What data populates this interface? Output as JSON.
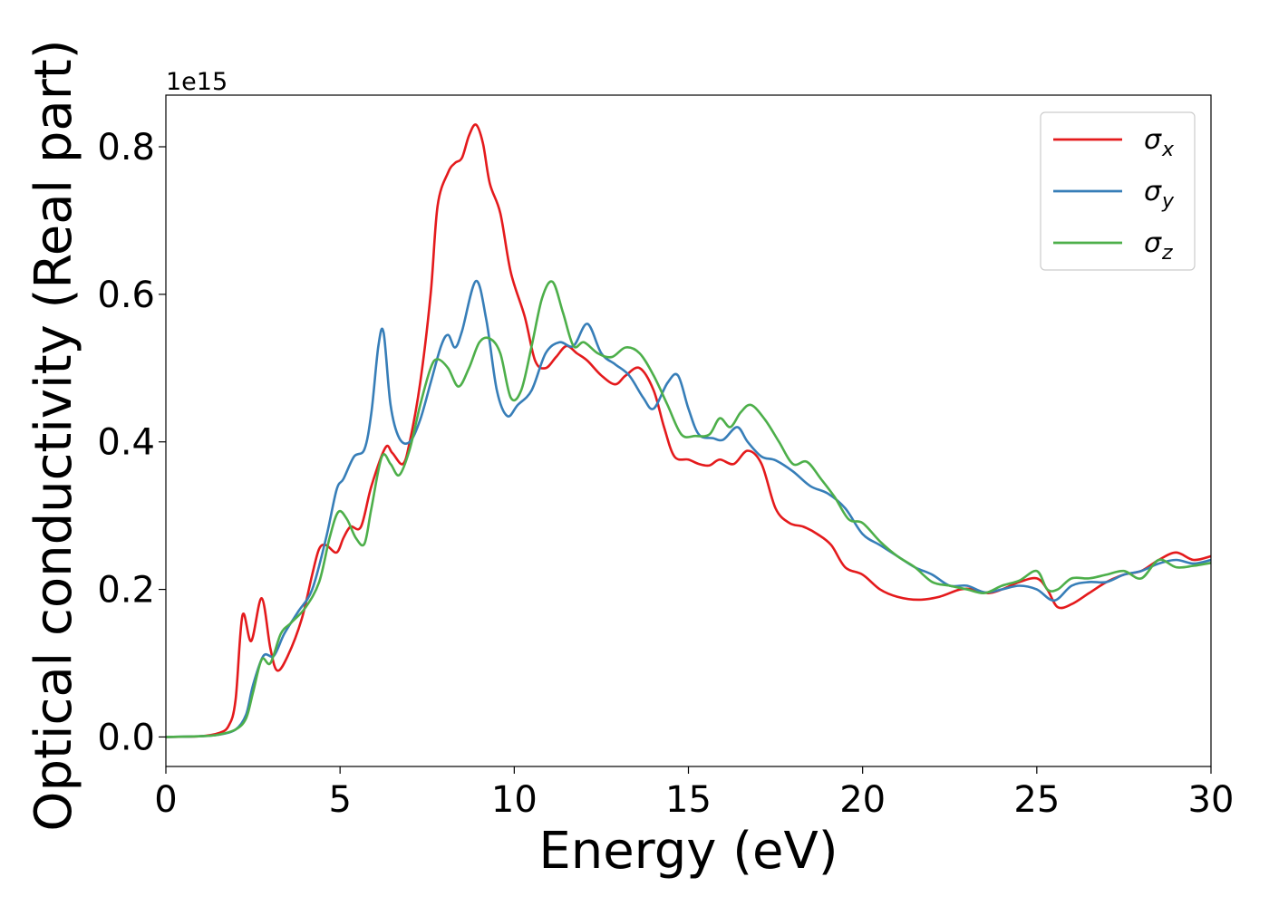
{
  "chart_data": {
    "type": "line",
    "title": "",
    "xlabel": "Energy (eV)",
    "ylabel": "Optical conductivity (Real part)",
    "y_offset_label": "1e15",
    "xlim": [
      0,
      30
    ],
    "ylim": [
      -0.04,
      0.87
    ],
    "grid": false,
    "legend_position": "top-right",
    "x_ticks": [
      0,
      5,
      10,
      15,
      20,
      25,
      30
    ],
    "x_tick_labels": [
      "0",
      "5",
      "10",
      "15",
      "20",
      "25",
      "30"
    ],
    "y_ticks": [
      0.0,
      0.2,
      0.4,
      0.6,
      0.8
    ],
    "y_tick_labels": [
      "0.0",
      "0.2",
      "0.4",
      "0.6",
      "0.8"
    ],
    "series": [
      {
        "name": "σx",
        "legend_symbol": "σ",
        "legend_subscript": "x",
        "color": "#e41a1c",
        "points": [
          [
            0,
            0.0
          ],
          [
            1.0,
            0.001
          ],
          [
            1.5,
            0.005
          ],
          [
            1.8,
            0.015
          ],
          [
            2.0,
            0.05
          ],
          [
            2.2,
            0.165
          ],
          [
            2.45,
            0.13
          ],
          [
            2.75,
            0.188
          ],
          [
            3.0,
            0.12
          ],
          [
            3.2,
            0.09
          ],
          [
            3.5,
            0.11
          ],
          [
            3.9,
            0.16
          ],
          [
            4.2,
            0.22
          ],
          [
            4.4,
            0.255
          ],
          [
            4.6,
            0.26
          ],
          [
            4.9,
            0.25
          ],
          [
            5.1,
            0.27
          ],
          [
            5.3,
            0.285
          ],
          [
            5.6,
            0.285
          ],
          [
            5.9,
            0.34
          ],
          [
            6.3,
            0.392
          ],
          [
            6.5,
            0.385
          ],
          [
            6.8,
            0.37
          ],
          [
            7.0,
            0.4
          ],
          [
            7.3,
            0.48
          ],
          [
            7.6,
            0.6
          ],
          [
            7.8,
            0.72
          ],
          [
            8.1,
            0.765
          ],
          [
            8.3,
            0.778
          ],
          [
            8.5,
            0.785
          ],
          [
            8.7,
            0.815
          ],
          [
            8.9,
            0.83
          ],
          [
            9.1,
            0.805
          ],
          [
            9.3,
            0.75
          ],
          [
            9.6,
            0.71
          ],
          [
            9.9,
            0.63
          ],
          [
            10.3,
            0.57
          ],
          [
            10.6,
            0.51
          ],
          [
            10.9,
            0.5
          ],
          [
            11.2,
            0.515
          ],
          [
            11.5,
            0.53
          ],
          [
            11.8,
            0.52
          ],
          [
            12.1,
            0.51
          ],
          [
            12.5,
            0.49
          ],
          [
            12.9,
            0.478
          ],
          [
            13.2,
            0.49
          ],
          [
            13.6,
            0.5
          ],
          [
            14.0,
            0.47
          ],
          [
            14.3,
            0.42
          ],
          [
            14.6,
            0.38
          ],
          [
            15.0,
            0.376
          ],
          [
            15.3,
            0.37
          ],
          [
            15.6,
            0.368
          ],
          [
            15.9,
            0.376
          ],
          [
            16.3,
            0.37
          ],
          [
            16.7,
            0.388
          ],
          [
            17.1,
            0.37
          ],
          [
            17.5,
            0.31
          ],
          [
            17.9,
            0.29
          ],
          [
            18.3,
            0.285
          ],
          [
            18.7,
            0.275
          ],
          [
            19.1,
            0.26
          ],
          [
            19.5,
            0.23
          ],
          [
            20.0,
            0.22
          ],
          [
            20.5,
            0.2
          ],
          [
            21.0,
            0.19
          ],
          [
            21.6,
            0.186
          ],
          [
            22.2,
            0.19
          ],
          [
            22.8,
            0.2
          ],
          [
            23.2,
            0.2
          ],
          [
            23.6,
            0.195
          ],
          [
            24.0,
            0.2
          ],
          [
            24.5,
            0.21
          ],
          [
            25.0,
            0.215
          ],
          [
            25.3,
            0.2
          ],
          [
            25.6,
            0.176
          ],
          [
            26.0,
            0.18
          ],
          [
            26.5,
            0.195
          ],
          [
            27.0,
            0.21
          ],
          [
            27.5,
            0.22
          ],
          [
            28.0,
            0.225
          ],
          [
            28.5,
            0.24
          ],
          [
            29.0,
            0.25
          ],
          [
            29.5,
            0.24
          ],
          [
            30.0,
            0.245
          ]
        ]
      },
      {
        "name": "σy",
        "legend_symbol": "σ",
        "legend_subscript": "y",
        "color": "#377eb8",
        "points": [
          [
            0,
            0.0
          ],
          [
            1.0,
            0.001
          ],
          [
            1.5,
            0.003
          ],
          [
            2.0,
            0.01
          ],
          [
            2.3,
            0.03
          ],
          [
            2.5,
            0.07
          ],
          [
            2.8,
            0.11
          ],
          [
            3.1,
            0.11
          ],
          [
            3.4,
            0.14
          ],
          [
            3.8,
            0.17
          ],
          [
            4.2,
            0.2
          ],
          [
            4.6,
            0.27
          ],
          [
            4.9,
            0.335
          ],
          [
            5.1,
            0.35
          ],
          [
            5.4,
            0.38
          ],
          [
            5.7,
            0.39
          ],
          [
            5.9,
            0.44
          ],
          [
            6.1,
            0.53
          ],
          [
            6.25,
            0.548
          ],
          [
            6.45,
            0.45
          ],
          [
            6.7,
            0.405
          ],
          [
            7.0,
            0.4
          ],
          [
            7.3,
            0.43
          ],
          [
            7.6,
            0.48
          ],
          [
            7.9,
            0.53
          ],
          [
            8.1,
            0.545
          ],
          [
            8.3,
            0.528
          ],
          [
            8.5,
            0.55
          ],
          [
            8.9,
            0.618
          ],
          [
            9.2,
            0.565
          ],
          [
            9.5,
            0.47
          ],
          [
            9.8,
            0.435
          ],
          [
            10.1,
            0.45
          ],
          [
            10.5,
            0.47
          ],
          [
            10.9,
            0.52
          ],
          [
            11.3,
            0.535
          ],
          [
            11.7,
            0.53
          ],
          [
            12.1,
            0.56
          ],
          [
            12.5,
            0.52
          ],
          [
            12.9,
            0.505
          ],
          [
            13.3,
            0.49
          ],
          [
            13.7,
            0.46
          ],
          [
            14.0,
            0.445
          ],
          [
            14.4,
            0.48
          ],
          [
            14.7,
            0.49
          ],
          [
            15.0,
            0.445
          ],
          [
            15.3,
            0.41
          ],
          [
            15.7,
            0.405
          ],
          [
            16.0,
            0.403
          ],
          [
            16.4,
            0.42
          ],
          [
            16.7,
            0.4
          ],
          [
            17.1,
            0.38
          ],
          [
            17.5,
            0.375
          ],
          [
            18.0,
            0.36
          ],
          [
            18.5,
            0.34
          ],
          [
            19.0,
            0.33
          ],
          [
            19.5,
            0.31
          ],
          [
            20.0,
            0.275
          ],
          [
            20.5,
            0.26
          ],
          [
            21.0,
            0.245
          ],
          [
            21.5,
            0.23
          ],
          [
            22.0,
            0.22
          ],
          [
            22.5,
            0.205
          ],
          [
            23.0,
            0.205
          ],
          [
            23.5,
            0.196
          ],
          [
            24.0,
            0.2
          ],
          [
            24.5,
            0.205
          ],
          [
            25.0,
            0.2
          ],
          [
            25.5,
            0.185
          ],
          [
            26.0,
            0.205
          ],
          [
            26.5,
            0.21
          ],
          [
            27.0,
            0.21
          ],
          [
            27.5,
            0.22
          ],
          [
            28.0,
            0.225
          ],
          [
            28.5,
            0.235
          ],
          [
            29.0,
            0.24
          ],
          [
            29.5,
            0.235
          ],
          [
            30.0,
            0.24
          ]
        ]
      },
      {
        "name": "σz",
        "legend_symbol": "σ",
        "legend_subscript": "z",
        "color": "#4daf4a",
        "points": [
          [
            0,
            0.0
          ],
          [
            1.0,
            0.001
          ],
          [
            1.5,
            0.003
          ],
          [
            2.0,
            0.01
          ],
          [
            2.3,
            0.025
          ],
          [
            2.5,
            0.06
          ],
          [
            2.75,
            0.105
          ],
          [
            3.0,
            0.1
          ],
          [
            3.3,
            0.14
          ],
          [
            3.6,
            0.155
          ],
          [
            4.0,
            0.175
          ],
          [
            4.4,
            0.21
          ],
          [
            4.7,
            0.27
          ],
          [
            4.95,
            0.305
          ],
          [
            5.2,
            0.295
          ],
          [
            5.45,
            0.27
          ],
          [
            5.7,
            0.262
          ],
          [
            5.9,
            0.31
          ],
          [
            6.2,
            0.38
          ],
          [
            6.45,
            0.37
          ],
          [
            6.7,
            0.355
          ],
          [
            7.0,
            0.39
          ],
          [
            7.3,
            0.45
          ],
          [
            7.6,
            0.5
          ],
          [
            7.8,
            0.512
          ],
          [
            8.1,
            0.5
          ],
          [
            8.4,
            0.475
          ],
          [
            8.7,
            0.5
          ],
          [
            9.0,
            0.535
          ],
          [
            9.3,
            0.54
          ],
          [
            9.6,
            0.52
          ],
          [
            9.9,
            0.46
          ],
          [
            10.2,
            0.47
          ],
          [
            10.5,
            0.53
          ],
          [
            10.8,
            0.595
          ],
          [
            11.1,
            0.617
          ],
          [
            11.4,
            0.575
          ],
          [
            11.7,
            0.53
          ],
          [
            12.0,
            0.535
          ],
          [
            12.4,
            0.52
          ],
          [
            12.8,
            0.515
          ],
          [
            13.2,
            0.528
          ],
          [
            13.6,
            0.52
          ],
          [
            14.0,
            0.49
          ],
          [
            14.4,
            0.45
          ],
          [
            14.8,
            0.41
          ],
          [
            15.2,
            0.408
          ],
          [
            15.6,
            0.41
          ],
          [
            15.9,
            0.432
          ],
          [
            16.2,
            0.42
          ],
          [
            16.5,
            0.44
          ],
          [
            16.8,
            0.45
          ],
          [
            17.2,
            0.43
          ],
          [
            17.6,
            0.4
          ],
          [
            18.0,
            0.37
          ],
          [
            18.4,
            0.373
          ],
          [
            18.8,
            0.35
          ],
          [
            19.2,
            0.325
          ],
          [
            19.6,
            0.295
          ],
          [
            20.0,
            0.29
          ],
          [
            20.5,
            0.265
          ],
          [
            21.0,
            0.245
          ],
          [
            21.5,
            0.23
          ],
          [
            22.0,
            0.21
          ],
          [
            22.5,
            0.205
          ],
          [
            23.0,
            0.2
          ],
          [
            23.5,
            0.195
          ],
          [
            24.0,
            0.205
          ],
          [
            24.5,
            0.212
          ],
          [
            25.0,
            0.225
          ],
          [
            25.3,
            0.2
          ],
          [
            25.6,
            0.2
          ],
          [
            26.0,
            0.215
          ],
          [
            26.5,
            0.215
          ],
          [
            27.0,
            0.22
          ],
          [
            27.5,
            0.225
          ],
          [
            28.0,
            0.215
          ],
          [
            28.5,
            0.24
          ],
          [
            29.0,
            0.23
          ],
          [
            29.5,
            0.232
          ],
          [
            30.0,
            0.236
          ]
        ]
      }
    ]
  }
}
